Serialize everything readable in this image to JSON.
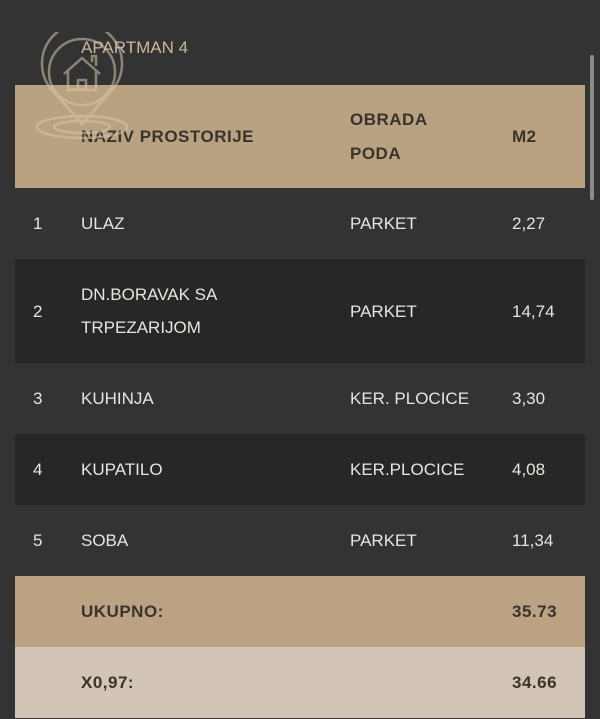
{
  "title": "APARTMAN 4",
  "logo_icon": "house-location-pin-icon",
  "colors": {
    "background": "#333333",
    "header": "#b9a282",
    "total_row": "#bba283",
    "adjusted_row": "#d3c5b5",
    "dark_row": "#272727"
  },
  "table": {
    "headers": [
      "",
      "NAZIV PROSTORIJE",
      "OBRADA PODA",
      "M2"
    ],
    "rows": [
      {
        "num": "1",
        "name": "ULAZ",
        "floor": "PARKET",
        "m2": "2,27"
      },
      {
        "num": "2",
        "name": "DN.BORAVAK SA TRPEZARIJOM",
        "floor": "PARKET",
        "m2": "14,74"
      },
      {
        "num": "3",
        "name": "KUHINJA",
        "floor": "KER. PLOCICE",
        "m2": "3,30"
      },
      {
        "num": "4",
        "name": "KUPATILO",
        "floor": "KER.PLOCICE",
        "m2": "4,08"
      },
      {
        "num": "5",
        "name": "SOBA",
        "floor": "PARKET",
        "m2": "11,34"
      }
    ],
    "total": {
      "label": "UKUPNO:",
      "value": "35.73"
    },
    "adjusted": {
      "label": "X0,97:",
      "value": "34.66"
    }
  }
}
